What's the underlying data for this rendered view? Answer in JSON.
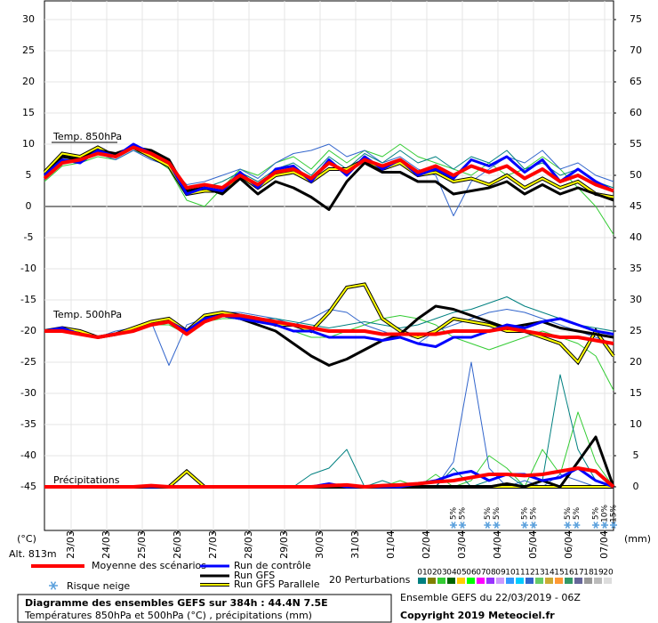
{
  "chart_data": {
    "type": "line",
    "labels": {
      "t850": "Temp. 850hPa",
      "t500": "Temp. 500hPa",
      "precip": "Précipitations"
    },
    "y_unit": "(°C)",
    "y2_unit": "(mm)",
    "altitude": "Alt. 813m",
    "title": "Diagramme des ensembles GEFS sur 384h : 44.4N 7.5E",
    "subtitle": "Températures 850hPa et 500hPa (°C) , précipitations (mm)",
    "run_info": "Ensemble GEFS du 22/03/2019 - 06Z",
    "copyright": "Copyright 2019 Meteociel.fr",
    "grid": true,
    "xlim": [
      0,
      384
    ],
    "xticks": [
      {
        "value": 18,
        "label": "23/03"
      },
      {
        "value": 42,
        "label": "24/03"
      },
      {
        "value": 66,
        "label": "25/03"
      },
      {
        "value": 90,
        "label": "26/03"
      },
      {
        "value": 114,
        "label": "27/03"
      },
      {
        "value": 138,
        "label": "28/03"
      },
      {
        "value": 162,
        "label": "29/03"
      },
      {
        "value": 186,
        "label": "30/03"
      },
      {
        "value": 210,
        "label": "31/03"
      },
      {
        "value": 234,
        "label": "01/04"
      },
      {
        "value": 258,
        "label": "02/04"
      },
      {
        "value": 282,
        "label": "03/04"
      },
      {
        "value": 306,
        "label": "04/04"
      },
      {
        "value": 330,
        "label": "05/04"
      },
      {
        "value": 354,
        "label": "06/04"
      },
      {
        "value": 378,
        "label": "07/04"
      }
    ],
    "ylim": [
      -52,
      33
    ],
    "yticks": [
      -45,
      -40,
      -35,
      -30,
      -25,
      -20,
      -15,
      -10,
      -5,
      0,
      5,
      10,
      15,
      20,
      25,
      30
    ],
    "y2lim": [
      -7,
      78
    ],
    "y2ticks": [
      0,
      5,
      10,
      15,
      20,
      25,
      30,
      35,
      40,
      45,
      50,
      55,
      60,
      65,
      70,
      75
    ],
    "x": [
      0,
      12,
      24,
      36,
      48,
      60,
      72,
      84,
      96,
      108,
      120,
      132,
      144,
      156,
      168,
      180,
      192,
      204,
      216,
      228,
      240,
      252,
      264,
      276,
      288,
      300,
      312,
      324,
      336,
      348,
      360,
      372,
      384
    ],
    "perturbations": {
      "label": "20 Perturbations",
      "members": [
        {
          "name": "01",
          "color": "#008080"
        },
        {
          "name": "02",
          "color": "#808000"
        },
        {
          "name": "03",
          "color": "#33cc33"
        },
        {
          "name": "04",
          "color": "#006400"
        },
        {
          "name": "05",
          "color": "#ffcc00"
        },
        {
          "name": "06",
          "color": "#00ff00"
        },
        {
          "name": "07",
          "color": "#ff00ff"
        },
        {
          "name": "08",
          "color": "#9933ff"
        },
        {
          "name": "09",
          "color": "#cc99ff"
        },
        {
          "name": "10",
          "color": "#3399ff"
        },
        {
          "name": "11",
          "color": "#00ccff"
        },
        {
          "name": "12",
          "color": "#3366cc"
        },
        {
          "name": "13",
          "color": "#66cc66"
        },
        {
          "name": "14",
          "color": "#ccaa33"
        },
        {
          "name": "15",
          "color": "#ff9933"
        },
        {
          "name": "16",
          "color": "#339966"
        },
        {
          "name": "17",
          "color": "#666699"
        },
        {
          "name": "18",
          "color": "#999999"
        },
        {
          "name": "19",
          "color": "#bbbbbb"
        },
        {
          "name": "20",
          "color": "#dddddd"
        }
      ],
      "series": [
        {
          "member": "03",
          "color": "#33cc33",
          "t850": [
            4,
            6.5,
            7,
            8,
            7.5,
            9,
            8,
            6,
            1,
            0,
            3,
            6,
            5,
            7,
            8,
            6,
            9,
            7,
            9,
            8,
            10,
            8,
            7,
            6,
            5,
            7,
            5,
            6,
            8,
            6,
            3,
            0,
            -4.5
          ],
          "t500": [
            -20,
            -20,
            -20.5,
            -21,
            -20.5,
            -20,
            -19,
            -19,
            -20.5,
            -18.5,
            -18,
            -18,
            -18,
            -19,
            -20,
            -21,
            -21,
            -20,
            -19,
            -18,
            -17.5,
            -18,
            -19,
            -21,
            -22,
            -23,
            -22,
            -21,
            -20,
            -21,
            -22,
            -24,
            -29.5
          ],
          "precip": [
            0,
            0,
            0,
            0,
            0,
            0,
            0,
            0,
            0,
            0,
            0,
            0,
            0,
            0,
            0,
            0,
            0,
            0,
            0,
            0,
            1,
            0,
            2,
            0,
            1,
            5,
            3,
            0,
            6,
            2,
            12,
            4,
            0
          ]
        },
        {
          "member": "12",
          "color": "#3366cc",
          "t850": [
            4.5,
            7,
            8,
            8.5,
            7.5,
            9,
            7.5,
            6.5,
            3.5,
            4,
            5,
            6,
            4.5,
            7,
            8.5,
            9,
            10,
            8,
            9,
            7,
            8,
            6,
            5,
            -1.5,
            4,
            6,
            8,
            7,
            9,
            6,
            7,
            5,
            4
          ],
          "t500": [
            -20,
            -20,
            -20.5,
            -21,
            -20,
            -19.5,
            -18.5,
            -25.5,
            -19,
            -18,
            -17,
            -17,
            -17.5,
            -18,
            -19,
            -18,
            -16.5,
            -17,
            -19,
            -20,
            -21,
            -22,
            -20,
            -19,
            -18,
            -17,
            -16.5,
            -17,
            -18,
            -19,
            -20,
            -21,
            -22
          ],
          "precip": [
            0,
            0,
            0,
            0,
            0,
            0,
            0,
            0,
            0,
            0,
            0,
            0,
            0,
            0,
            0,
            0,
            0,
            0,
            0,
            0,
            0,
            0,
            0,
            4,
            20,
            3,
            0,
            1,
            0,
            2,
            1,
            0,
            0
          ]
        },
        {
          "member": "01",
          "color": "#008080",
          "t850": [
            5,
            7.5,
            7.5,
            9,
            8,
            9.5,
            8,
            7,
            2.5,
            3,
            4,
            5.5,
            4,
            6,
            7,
            5,
            8,
            6,
            8.5,
            7,
            9,
            7,
            8,
            6,
            8,
            7,
            9,
            6,
            7,
            5,
            6,
            4,
            3
          ],
          "t500": [
            -20,
            -20,
            -20.5,
            -21,
            -20.5,
            -20,
            -19,
            -18.5,
            -20,
            -18,
            -17.5,
            -17.5,
            -18,
            -18,
            -18.5,
            -19,
            -19.5,
            -19,
            -18.5,
            -19,
            -19.5,
            -19,
            -18,
            -17,
            -16.5,
            -15.5,
            -14.5,
            -16,
            -17,
            -18,
            -19,
            -19.5,
            -20
          ],
          "precip": [
            0,
            0,
            0,
            0,
            0,
            0,
            0,
            0,
            0,
            0,
            0,
            0,
            0,
            0,
            0,
            2,
            3,
            6,
            0,
            1,
            0,
            0,
            0,
            3,
            0,
            1,
            2,
            0,
            1,
            18,
            6,
            1,
            0
          ]
        }
      ]
    },
    "series": [
      {
        "name": "Moyenne des scénarios",
        "color": "#ff0000",
        "width": 4,
        "t850": [
          4.5,
          7,
          7.5,
          8.5,
          8,
          9.5,
          8.5,
          7,
          3,
          3.5,
          3,
          5,
          3.5,
          5.5,
          6,
          4.5,
          7,
          5.5,
          7.5,
          6.5,
          7.5,
          5.5,
          6.5,
          5,
          6.5,
          5.5,
          6.5,
          4.5,
          6,
          4,
          5,
          3.5,
          2.5
        ],
        "t500": [
          -20,
          -20,
          -20.5,
          -21,
          -20.5,
          -20,
          -19,
          -18.5,
          -20.5,
          -18.5,
          -17.5,
          -17.5,
          -18,
          -18.5,
          -19,
          -19.5,
          -20,
          -20,
          -20,
          -20.5,
          -20.5,
          -20.5,
          -20.5,
          -20,
          -20,
          -20,
          -19.5,
          -20,
          -20.5,
          -21,
          -21,
          -21.5,
          -22
        ],
        "precip": [
          0,
          0,
          0,
          0,
          0,
          0,
          0.2,
          0,
          0,
          0,
          0,
          0,
          0,
          0,
          0,
          0,
          0.2,
          0.3,
          0,
          0.2,
          0.3,
          0.5,
          0.8,
          1,
          1.5,
          2,
          2,
          1.8,
          2,
          2.5,
          3,
          2.5,
          0
        ]
      },
      {
        "name": "Run de contrôle",
        "color": "#0000ff",
        "width": 3,
        "t850": [
          5,
          7.5,
          7,
          9,
          8,
          10,
          8.5,
          7,
          2,
          3,
          2.5,
          5.5,
          3,
          6,
          6.5,
          4,
          7.5,
          5,
          8,
          6,
          7.5,
          5,
          6,
          4.5,
          7.5,
          6.5,
          8,
          5.5,
          7.5,
          4,
          6,
          4,
          2.5
        ],
        "t500": [
          -20,
          -19.5,
          -20.5,
          -21,
          -20.5,
          -20,
          -19,
          -18.5,
          -20,
          -18,
          -17.5,
          -18,
          -18.5,
          -19,
          -20,
          -20,
          -21,
          -21,
          -21,
          -21.5,
          -21,
          -22,
          -22.5,
          -21,
          -21,
          -20,
          -19,
          -19.5,
          -18.5,
          -18,
          -19,
          -20,
          -20.5
        ],
        "precip": [
          0,
          0,
          0,
          0,
          0,
          0,
          0,
          0,
          0,
          0,
          0,
          0,
          0,
          0,
          0,
          0,
          0.5,
          0,
          0,
          0,
          0,
          0.5,
          1,
          2,
          2.5,
          1,
          2,
          2,
          1,
          1.5,
          3,
          1,
          0
        ]
      },
      {
        "name": "Run GFS",
        "color": "#000000",
        "width": 3,
        "t850": [
          5,
          8,
          7.5,
          9,
          8.5,
          9.5,
          9,
          7.5,
          2.5,
          3,
          2,
          4.5,
          2,
          4,
          3,
          1.5,
          -0.5,
          4,
          7,
          5.5,
          5.5,
          4,
          4,
          2,
          2.5,
          3,
          4,
          2,
          3.5,
          2,
          3,
          2,
          1
        ],
        "t500": [
          -20,
          -19.5,
          -20.5,
          -21,
          -20.5,
          -20,
          -19,
          -18.5,
          -20,
          -18,
          -17.5,
          -18,
          -19,
          -20,
          -22,
          -24,
          -25.5,
          -24.5,
          -23,
          -21.5,
          -20.5,
          -18,
          -16,
          -16.5,
          -17.5,
          -18.5,
          -19.5,
          -19,
          -18.5,
          -19.5,
          -20,
          -20.5,
          -21
        ],
        "precip": [
          0,
          0,
          0,
          0,
          0,
          0,
          0,
          0,
          0,
          0,
          0,
          0,
          0,
          0,
          0,
          0,
          0,
          0,
          0,
          0,
          0,
          0,
          0,
          0,
          0,
          0,
          0.5,
          0,
          1,
          0,
          4,
          8,
          0
        ]
      },
      {
        "name": "Run GFS Parallele",
        "color": "#ffff00",
        "outline": "#000000",
        "width": 2,
        "t850": [
          5.5,
          8.5,
          8,
          9.5,
          8,
          9.5,
          8,
          6.5,
          2,
          2.5,
          2.5,
          5,
          3,
          5,
          5.5,
          4,
          6,
          6,
          7.5,
          6,
          7,
          5,
          5.5,
          4,
          4.5,
          3.5,
          5,
          3,
          4.5,
          3,
          4,
          2,
          1.5
        ],
        "t500": [
          -20,
          -19.5,
          -20,
          -21,
          -20.5,
          -19.5,
          -18.5,
          -18,
          -20,
          -17.5,
          -17,
          -17.5,
          -18,
          -19,
          -19,
          -20,
          -17,
          -13,
          -12.5,
          -18,
          -20,
          -21,
          -20,
          -18,
          -18.5,
          -19,
          -20,
          -20,
          -21,
          -22,
          -25,
          -20,
          -24
        ],
        "precip": [
          0,
          0,
          0,
          0,
          0,
          0,
          0,
          0,
          2.5,
          0,
          0,
          0,
          0,
          0,
          0,
          0,
          0,
          0,
          0,
          0,
          0,
          0,
          0,
          0,
          0,
          0,
          0,
          0,
          0,
          0,
          0,
          0,
          0
        ]
      }
    ],
    "snow_risk": {
      "label": "Risque neige",
      "x": [
        276,
        282,
        299,
        305,
        324,
        330,
        353,
        359,
        372,
        378,
        384
      ],
      "values": [
        5,
        5,
        5,
        5,
        5,
        5,
        5,
        5,
        5,
        10,
        15
      ],
      "value_labels": [
        "5%",
        "5%",
        "5%",
        "5%",
        "5%",
        "5%",
        "5%",
        "5%",
        "5%",
        "10%",
        "15%"
      ]
    }
  }
}
